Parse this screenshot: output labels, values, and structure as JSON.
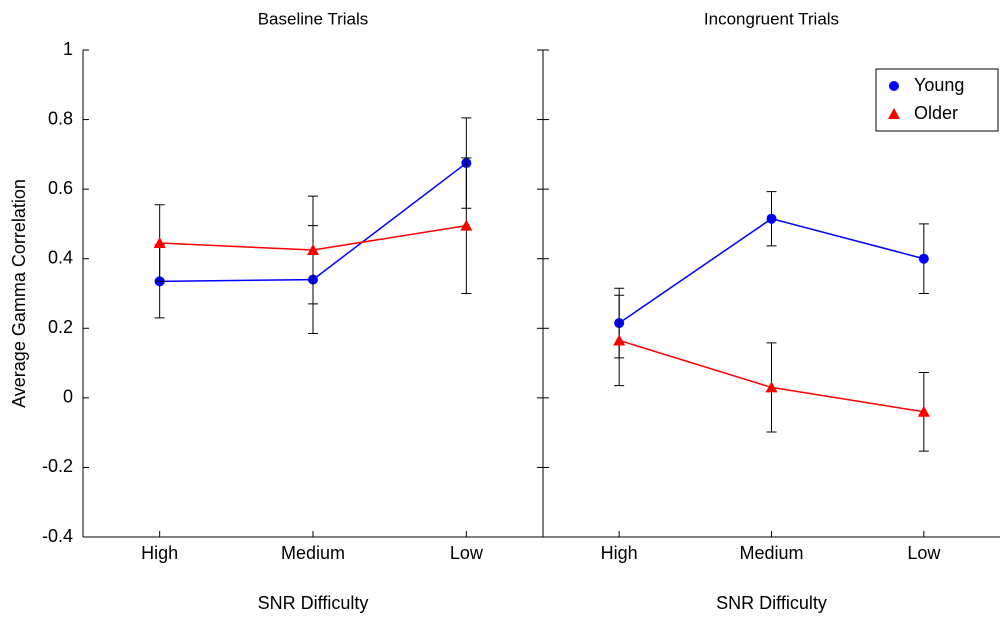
{
  "chart_data": [
    {
      "type": "line",
      "title": "Baseline Trials",
      "xlabel": "SNR Difficulty",
      "ylabel": "Average Gamma Correlation",
      "categories": [
        "High",
        "Medium",
        "Low"
      ],
      "series": [
        {
          "color": "#0000ff",
          "marker": "circle",
          "values": [
            0.335,
            0.34,
            0.675
          ],
          "errors": [
            0.105,
            0.155,
            0.13
          ]
        },
        {
          "color": "#ff0000",
          "marker": "triangle",
          "values": [
            0.445,
            0.425,
            0.495
          ],
          "errors": [
            0.11,
            0.155,
            0.195
          ]
        }
      ],
      "ylim": [
        -0.4,
        1
      ],
      "yticks": [
        1,
        0.8,
        0.6,
        0.4,
        0.2,
        0,
        -0.2,
        -0.4
      ]
    },
    {
      "type": "line",
      "title": "Incongruent Trials",
      "xlabel": "SNR Difficulty",
      "categories": [
        "High",
        "Medium",
        "Low"
      ],
      "series": [
        {
          "name": "Young",
          "color": "#0000ff",
          "marker": "circle",
          "values": [
            0.215,
            0.515,
            0.4
          ],
          "errors": [
            0.1,
            0.078,
            0.1
          ]
        },
        {
          "name": "Older",
          "color": "#ff0000",
          "marker": "triangle",
          "values": [
            0.165,
            0.03,
            -0.04
          ],
          "errors": [
            0.13,
            0.128,
            0.113
          ]
        }
      ],
      "ylim": [
        -0.4,
        1
      ],
      "legend": "upper right"
    }
  ]
}
